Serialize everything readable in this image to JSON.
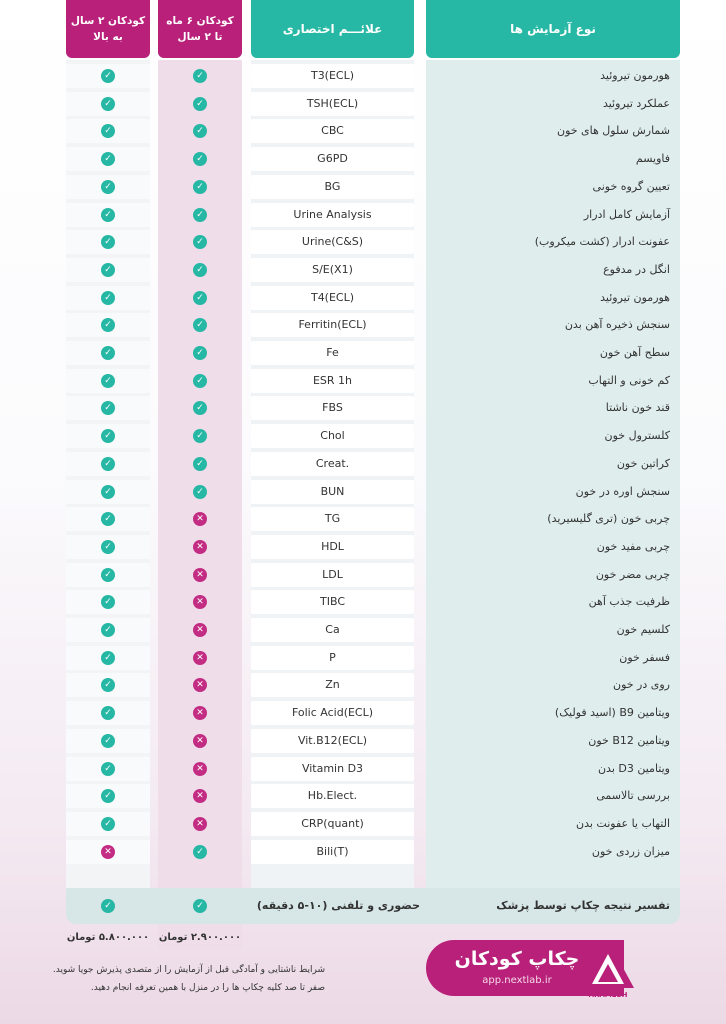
{
  "header": {
    "test_name": "نوع آزمایش ها",
    "abbreviation": "علائـــم اختصاری",
    "col_6m_2y": "کودکان ۶ ماه\nتا ۲ سال",
    "col_2y_up": "کودکان ۲ سال\nبه بالا"
  },
  "rows": [
    {
      "name": "هورمون تیروئید",
      "abbr": "T3(ECL)",
      "c62": "check",
      "c2": "check"
    },
    {
      "name": "عملکرد تیروئید",
      "abbr": "TSH(ECL)",
      "c62": "check",
      "c2": "check"
    },
    {
      "name": "شمارش سلول های خون",
      "abbr": "CBC",
      "c62": "check",
      "c2": "check"
    },
    {
      "name": "فاویسم",
      "abbr": "G6PD",
      "c62": "check",
      "c2": "check"
    },
    {
      "name": "تعیین گروه خونی",
      "abbr": "BG",
      "c62": "check",
      "c2": "check"
    },
    {
      "name": "آزمایش کامل ادرار",
      "abbr": "Urine Analysis",
      "c62": "check",
      "c2": "check"
    },
    {
      "name": "عفونت ادرار (کشت میکروب)",
      "abbr": "Urine(C&S)",
      "c62": "check",
      "c2": "check"
    },
    {
      "name": "انگل در مدفوع",
      "abbr": "S/E(X1)",
      "c62": "check",
      "c2": "check"
    },
    {
      "name": "هورمون تیروئید",
      "abbr": "T4(ECL)",
      "c62": "check",
      "c2": "check"
    },
    {
      "name": "سنجش ذخیره آهن بدن",
      "abbr": "Ferritin(ECL)",
      "c62": "check",
      "c2": "check"
    },
    {
      "name": "سطح آهن خون",
      "abbr": "Fe",
      "c62": "check",
      "c2": "check"
    },
    {
      "name": "کم خونی و التهاب",
      "abbr": "ESR 1h",
      "c62": "check",
      "c2": "check"
    },
    {
      "name": "قند خون ناشتا",
      "abbr": "FBS",
      "c62": "check",
      "c2": "check"
    },
    {
      "name": "کلسترول خون",
      "abbr": "Chol",
      "c62": "check",
      "c2": "check"
    },
    {
      "name": "کراتین خون",
      "abbr": "Creat.",
      "c62": "check",
      "c2": "check"
    },
    {
      "name": "سنجش اوره در خون",
      "abbr": "BUN",
      "c62": "check",
      "c2": "check"
    },
    {
      "name": "چربی خون (تری گلیسیرید)",
      "abbr": "TG",
      "c62": "cross",
      "c2": "check"
    },
    {
      "name": "چربی مفید خون",
      "abbr": "HDL",
      "c62": "cross",
      "c2": "check"
    },
    {
      "name": "چربی مضر خون",
      "abbr": "LDL",
      "c62": "cross",
      "c2": "check"
    },
    {
      "name": "ظرفیت جذب آهن",
      "abbr": "TIBC",
      "c62": "cross",
      "c2": "check"
    },
    {
      "name": "کلسیم خون",
      "abbr": "Ca",
      "c62": "cross",
      "c2": "check"
    },
    {
      "name": "فسفر خون",
      "abbr": "P",
      "c62": "cross",
      "c2": "check"
    },
    {
      "name": "روی در خون",
      "abbr": "Zn",
      "c62": "cross",
      "c2": "check"
    },
    {
      "name": "ویتامین B9 (اسید فولیک)",
      "abbr": "Folic Acid(ECL)",
      "c62": "cross",
      "c2": "check"
    },
    {
      "name": "ویتامین B12 خون",
      "abbr": "Vit.B12(ECL)",
      "c62": "cross",
      "c2": "check"
    },
    {
      "name": "ویتامین D3 بدن",
      "abbr": "Vitamin D3",
      "c62": "cross",
      "c2": "check"
    },
    {
      "name": "بررسی تالاسمی",
      "abbr": "Hb.Elect.",
      "c62": "cross",
      "c2": "check"
    },
    {
      "name": "التهاب یا عفونت بدن",
      "abbr": "CRP(quant)",
      "c62": "cross",
      "c2": "check"
    },
    {
      "name": "میزان زردی خون",
      "abbr": "Bili(T)",
      "c62": "check",
      "c2": "cross"
    }
  ],
  "footer": {
    "label": "تفسیر نتیجه چکاپ توسط پزشک",
    "note": "حضوری و تلفنی (۱۰-۵ دقیقه)",
    "c62": "check",
    "c2": "check"
  },
  "prices": {
    "col_6m_2y": "۲.۹۰۰.۰۰۰ تومان",
    "col_2y_up": "۵.۸۰۰.۰۰۰ تومان"
  },
  "conditions": [
    "شرایط ناشتایی و آمادگی قبل از آزمایش را از متصدی پذیرش جویا شوید.",
    "صفر تا صد کلیه چکاپ ها را در منزل با همین تعرفه انجام دهید."
  ],
  "brand": {
    "title": "چکاپ کودکان",
    "url": "app.nextlab.ir",
    "logo_text": "ARAMESH",
    "accent": "#b8207a",
    "teal": "#26b8a4"
  }
}
